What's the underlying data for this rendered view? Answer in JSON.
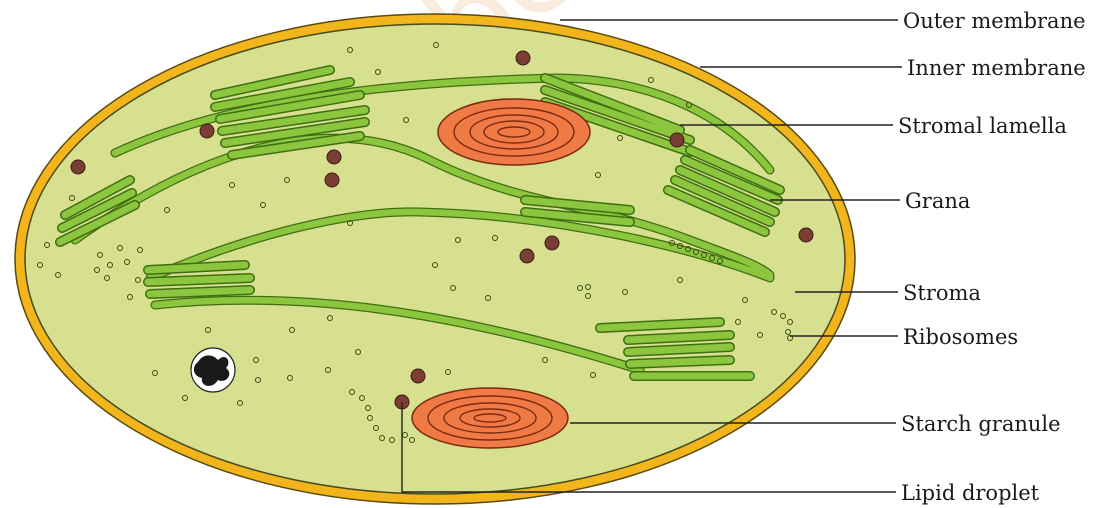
{
  "diagram": {
    "labels": {
      "outer_membrane": "Outer membrane",
      "inner_membrane": "Inner membrane",
      "stromal_lamella": "Stromal lamella",
      "grana": "Grana",
      "stroma": "Stroma",
      "ribosomes": "Ribosomes",
      "starch_granule": "Starch granule",
      "lipid_droplet": "Lipid droplet"
    },
    "watermark": "not to be",
    "colors": {
      "outer_membrane": "#f2b51c",
      "stroma": "#d7e08f",
      "thylakoid": "#8cc63f",
      "thylakoid_stroke": "#3f6e12",
      "starch": "#f07a45",
      "lipid": "#7a3e35",
      "watermark": "#f2c9a0"
    }
  }
}
